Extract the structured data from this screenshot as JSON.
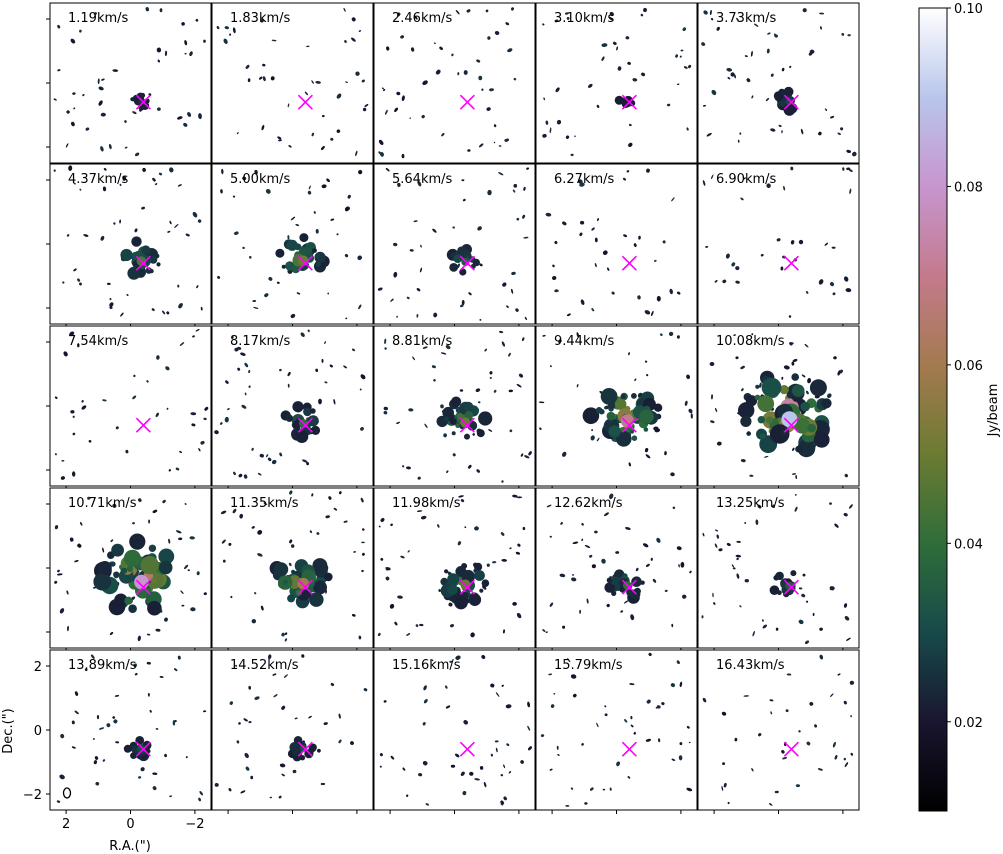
{
  "chart_data": {
    "type": "heatmap",
    "subtype": "channel-map grid",
    "rows": 5,
    "cols": 5,
    "channels_kms": [
      1.19,
      1.83,
      2.46,
      3.1,
      3.73,
      4.37,
      5.0,
      5.64,
      6.27,
      6.9,
      7.54,
      8.17,
      8.81,
      9.44,
      10.08,
      10.71,
      11.35,
      11.98,
      12.62,
      13.25,
      13.89,
      14.52,
      15.16,
      15.79,
      16.43
    ],
    "panel_labels": [
      "1.19km/s",
      "1.83km/s",
      "2.46km/s",
      "3.10km/s",
      "3.73km/s",
      "4.37km/s",
      "5.00km/s",
      "5.64km/s",
      "6.27km/s",
      "6.90km/s",
      "7.54km/s",
      "8.17km/s",
      "8.81km/s",
      "9.44km/s",
      "10.08km/s",
      "10.71km/s",
      "11.35km/s",
      "11.98km/s",
      "12.62km/s",
      "13.25km/s",
      "13.89km/s",
      "14.52km/s",
      "15.16km/s",
      "15.79km/s",
      "16.43km/s"
    ],
    "peak_intensity_jy_beam": [
      0.025,
      0.02,
      0.02,
      0.022,
      0.03,
      0.045,
      0.05,
      0.035,
      0.015,
      0.015,
      0.015,
      0.04,
      0.05,
      0.07,
      0.09,
      0.08,
      0.06,
      0.05,
      0.04,
      0.035,
      0.03,
      0.03,
      0.02,
      0.02,
      0.02
    ],
    "marker": {
      "symbol": "x",
      "color": "#ff00ff",
      "ra_arcsec": -0.4,
      "dec_arcsec": -0.6
    },
    "xlabel": "R.A.(\")",
    "ylabel": "Dec.(\")",
    "xlim": [
      2.5,
      -2.5
    ],
    "ylim": [
      -2.5,
      2.5
    ],
    "xticks": [
      2,
      0,
      -2
    ],
    "xtick_labels": [
      "2",
      "0",
      "−2"
    ],
    "yticks": [
      2,
      0,
      -2
    ],
    "ytick_labels": [
      "2",
      "0",
      "−2"
    ],
    "colorbar": {
      "label": "Jy/beam",
      "range": [
        0.01,
        0.1
      ],
      "ticks": [
        0.02,
        0.04,
        0.06,
        0.08,
        0.1
      ],
      "tick_labels": [
        "0.02",
        "0.04",
        "0.06",
        "0.08",
        "0.10"
      ],
      "colormap": "cubehelix",
      "stops": [
        {
          "v": 0.01,
          "color": "#000000"
        },
        {
          "v": 0.02,
          "color": "#1a1530"
        },
        {
          "v": 0.03,
          "color": "#174a4a"
        },
        {
          "v": 0.04,
          "color": "#2f6d3a"
        },
        {
          "v": 0.05,
          "color": "#6c7b32"
        },
        {
          "v": 0.06,
          "color": "#a47a4f"
        },
        {
          "v": 0.07,
          "color": "#c47a8d"
        },
        {
          "v": 0.08,
          "color": "#c795cf"
        },
        {
          "v": 0.09,
          "color": "#b9c6ec"
        },
        {
          "v": 0.1,
          "color": "#ffffff"
        }
      ]
    },
    "beam": {
      "shape": "ellipse"
    },
    "grid": false
  }
}
